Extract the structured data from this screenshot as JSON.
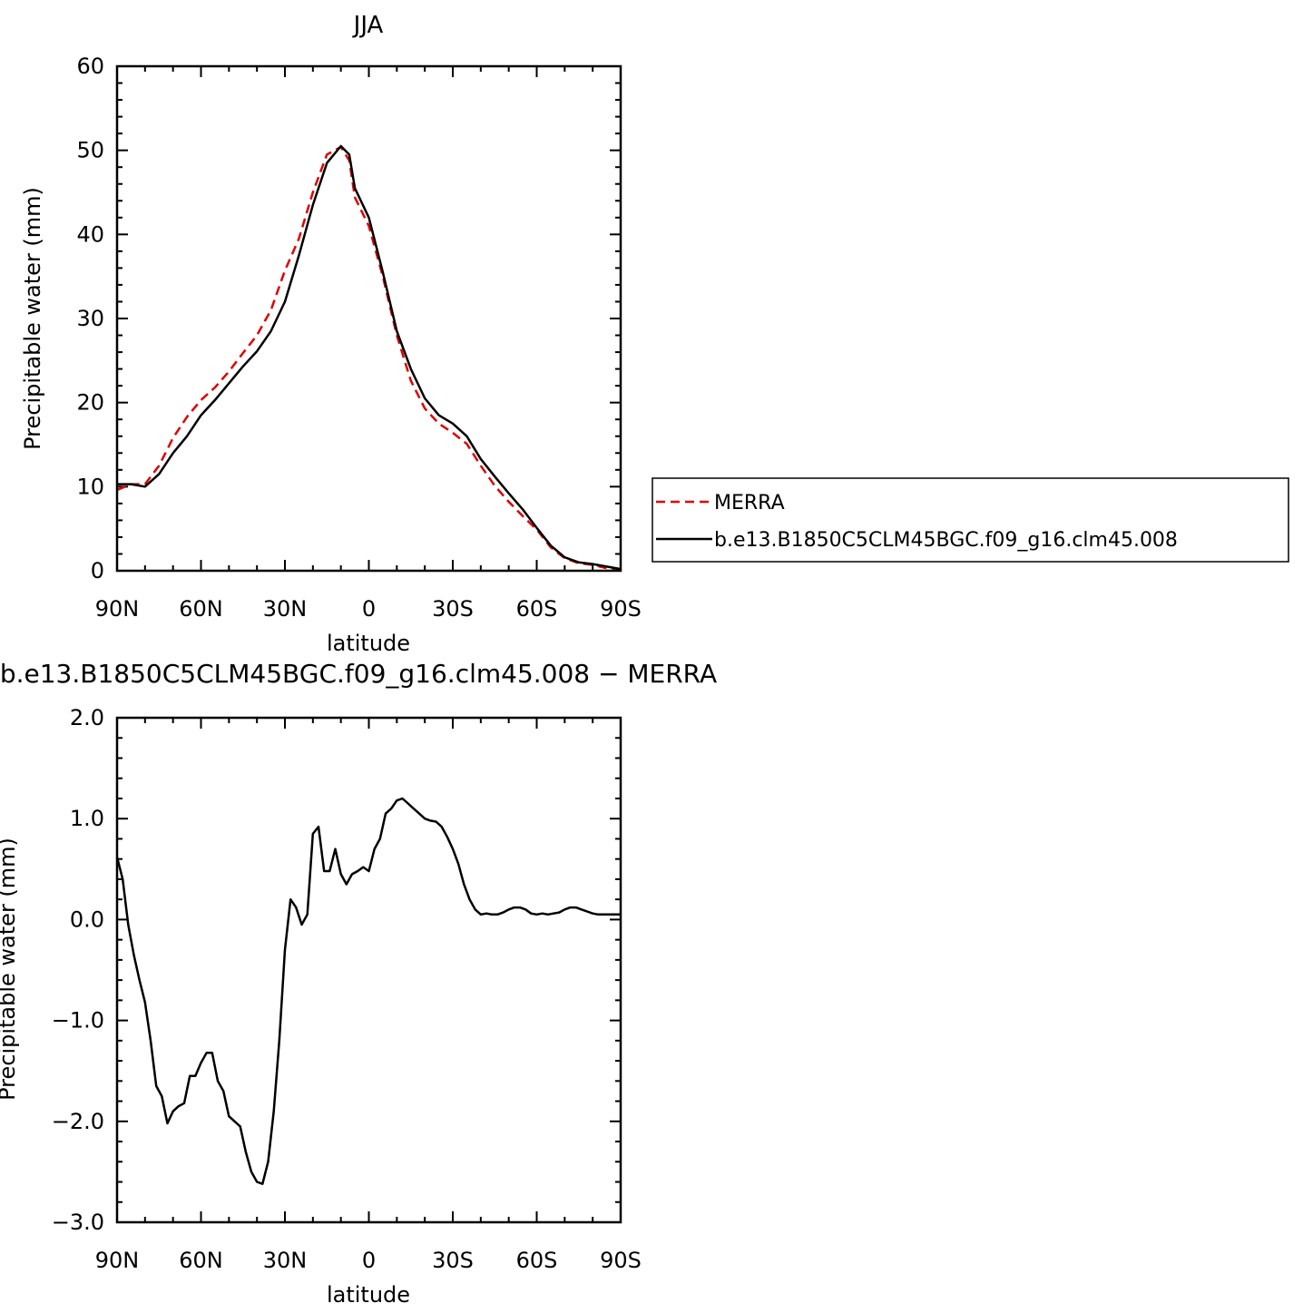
{
  "chart_data": [
    {
      "type": "line",
      "title": "JJA",
      "xlabel": "latitude",
      "ylabel": "Precipitable water (mm)",
      "xlim": [
        90,
        -90
      ],
      "ylim": [
        0,
        60
      ],
      "xticks": [
        90,
        60,
        30,
        0,
        -30,
        -60,
        -90
      ],
      "xtick_labels": [
        "90N",
        "60N",
        "30N",
        "0",
        "30S",
        "60S",
        "90S"
      ],
      "yticks": [
        0,
        10,
        20,
        30,
        40,
        50,
        60
      ],
      "ytick_labels": [
        "0",
        "10",
        "20",
        "30",
        "40",
        "50",
        "60"
      ],
      "legend_position": "right",
      "series": [
        {
          "name": "MERRA",
          "color": "#e00000",
          "dash": "dashed",
          "x": [
            90,
            85,
            80,
            75,
            70,
            65,
            60,
            55,
            50,
            45,
            40,
            35,
            30,
            25,
            20,
            15,
            10,
            7,
            5,
            0,
            -5,
            -10,
            -15,
            -20,
            -25,
            -30,
            -35,
            -40,
            -45,
            -50,
            -55,
            -60,
            -65,
            -70,
            -75,
            -80,
            -85,
            -90
          ],
          "y": [
            9.6,
            10.3,
            10.3,
            12.5,
            15.8,
            18.3,
            20.3,
            21.8,
            23.7,
            25.9,
            28.0,
            31.0,
            35.7,
            39.5,
            45.0,
            49.5,
            50.4,
            48.8,
            44.4,
            41.0,
            35.0,
            28.0,
            22.6,
            19.3,
            17.5,
            16.4,
            15.1,
            12.5,
            10.1,
            8.2,
            6.5,
            4.9,
            2.8,
            1.5,
            0.9,
            0.7,
            0.3,
            0.1
          ]
        },
        {
          "name": "b.e13.B1850C5CLM45BGC.f09_g16.clm45.008",
          "color": "#000000",
          "dash": "solid",
          "x": [
            90,
            85,
            80,
            75,
            70,
            65,
            60,
            55,
            50,
            45,
            40,
            35,
            30,
            25,
            20,
            15,
            10,
            7,
            5,
            0,
            -5,
            -10,
            -15,
            -20,
            -25,
            -30,
            -35,
            -40,
            -45,
            -50,
            -55,
            -60,
            -65,
            -70,
            -75,
            -80,
            -85,
            -90
          ],
          "y": [
            10.3,
            10.3,
            10.0,
            11.5,
            14.0,
            16.0,
            18.5,
            20.3,
            22.3,
            24.3,
            26.1,
            28.5,
            32.0,
            37.5,
            43.5,
            48.5,
            50.5,
            49.5,
            45.5,
            42.0,
            35.5,
            28.5,
            24.0,
            20.5,
            18.5,
            17.5,
            16.0,
            13.3,
            11.2,
            9.2,
            7.3,
            5.1,
            3.0,
            1.6,
            1.0,
            0.8,
            0.5,
            0.2
          ]
        }
      ]
    },
    {
      "type": "line",
      "title": "b.e13.B1850C5CLM45BGC.f09_g16.clm45.008 − MERRA",
      "xlabel": "latitude",
      "ylabel": "Precipitable water (mm)",
      "xlim": [
        90,
        -90
      ],
      "ylim": [
        -3.0,
        2.0
      ],
      "xticks": [
        90,
        60,
        30,
        0,
        -30,
        -60,
        -90
      ],
      "xtick_labels": [
        "90N",
        "60N",
        "30N",
        "0",
        "30S",
        "60S",
        "90S"
      ],
      "yticks": [
        -3.0,
        -2.0,
        -1.0,
        0.0,
        1.0,
        2.0
      ],
      "ytick_labels": [
        "−3.0",
        "−2.0",
        "−1.0",
        "0.0",
        "1.0",
        "2.0"
      ],
      "series": [
        {
          "color": "#000000",
          "dash": "solid",
          "x": [
            90,
            88,
            86,
            84,
            82,
            80,
            78,
            76,
            74,
            72,
            70,
            68,
            66,
            64,
            62,
            60,
            58,
            56,
            54,
            52,
            50,
            48,
            46,
            44,
            42,
            40,
            38,
            36,
            34,
            32,
            30,
            28,
            26,
            24,
            22,
            20,
            18,
            16,
            14,
            12,
            10,
            8,
            6,
            4,
            2,
            0,
            -2,
            -4,
            -6,
            -8,
            -10,
            -12,
            -14,
            -16,
            -18,
            -20,
            -22,
            -24,
            -26,
            -28,
            -30,
            -32,
            -34,
            -36,
            -38,
            -40,
            -42,
            -44,
            -46,
            -48,
            -50,
            -52,
            -54,
            -56,
            -58,
            -60,
            -62,
            -64,
            -66,
            -68,
            -70,
            -72,
            -74,
            -76,
            -78,
            -80,
            -82,
            -84,
            -86,
            -88,
            -90
          ],
          "y": [
            0.62,
            0.4,
            -0.05,
            -0.35,
            -0.6,
            -0.82,
            -1.2,
            -1.65,
            -1.75,
            -2.02,
            -1.9,
            -1.85,
            -1.82,
            -1.55,
            -1.55,
            -1.42,
            -1.32,
            -1.32,
            -1.6,
            -1.7,
            -1.95,
            -2.0,
            -2.05,
            -2.3,
            -2.5,
            -2.6,
            -2.62,
            -2.4,
            -1.9,
            -1.2,
            -0.3,
            0.2,
            0.12,
            -0.05,
            0.05,
            0.85,
            0.92,
            0.48,
            0.48,
            0.7,
            0.45,
            0.35,
            0.45,
            0.48,
            0.52,
            0.48,
            0.7,
            0.8,
            1.05,
            1.1,
            1.18,
            1.2,
            1.15,
            1.1,
            1.05,
            1.0,
            0.98,
            0.97,
            0.92,
            0.82,
            0.7,
            0.55,
            0.35,
            0.2,
            0.1,
            0.05,
            0.06,
            0.05,
            0.05,
            0.07,
            0.1,
            0.12,
            0.12,
            0.1,
            0.06,
            0.05,
            0.06,
            0.05,
            0.06,
            0.07,
            0.1,
            0.12,
            0.12,
            0.1,
            0.08,
            0.06,
            0.05,
            0.05,
            0.05,
            0.05,
            0.05
          ]
        }
      ]
    }
  ]
}
